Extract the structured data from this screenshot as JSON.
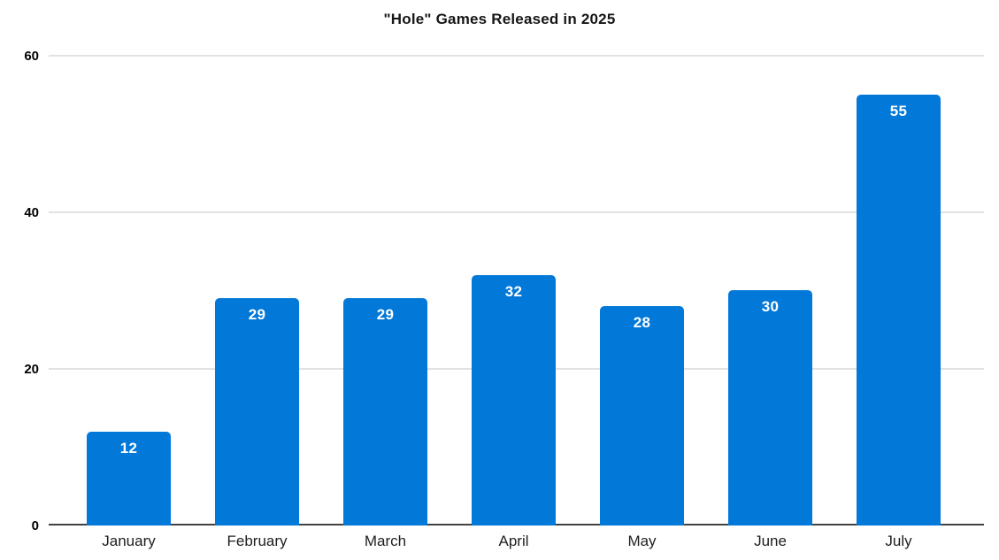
{
  "chart_data": {
    "type": "bar",
    "title": "\"Hole\" Games Released in 2025",
    "categories": [
      "January",
      "February",
      "March",
      "April",
      "May",
      "June",
      "July"
    ],
    "values": [
      12,
      29,
      29,
      32,
      28,
      30,
      55
    ],
    "xlabel": "",
    "ylabel": "",
    "ylim": [
      0,
      60
    ],
    "y_ticks": [
      0,
      20,
      40,
      60
    ],
    "grid": true,
    "legend": "none",
    "bar_value_labels_shown": true
  },
  "colors": {
    "bar": "#0278d9",
    "bar_label": "#ffffff",
    "gridline": "#e2e2e2",
    "axis_line": "#424242",
    "title_text": "#161616",
    "tick_text": "#000000"
  }
}
